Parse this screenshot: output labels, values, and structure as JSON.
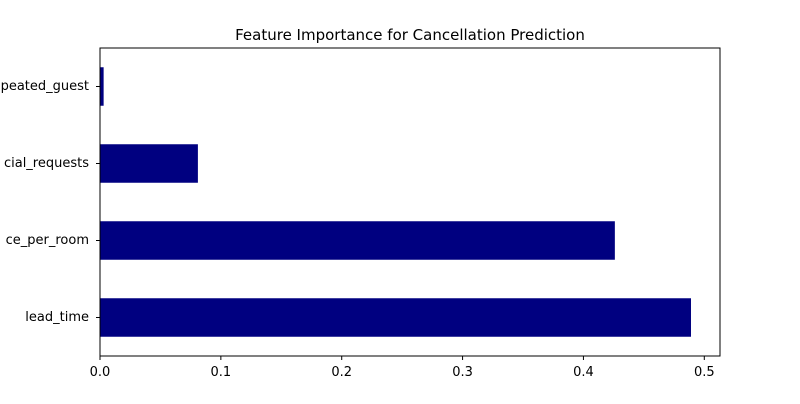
{
  "chart_data": {
    "type": "bar",
    "orientation": "horizontal",
    "title": "Feature Importance for Cancellation Prediction",
    "categories": [
      "lead_time",
      "avg_price_per_room",
      "no_of_special_requests",
      "repeated_guest"
    ],
    "categories_visible": [
      "lead_time",
      "ce_per_room",
      "cial_requests",
      "peated_guest"
    ],
    "values": [
      0.489,
      0.426,
      0.081,
      0.003
    ],
    "x_ticks": [
      "0.0",
      "0.1",
      "0.2",
      "0.3",
      "0.4",
      "0.5"
    ],
    "xlim": [
      0,
      0.513
    ],
    "xlabel": "",
    "ylabel": "",
    "bar_color": "#000080",
    "grid": false,
    "legend": "none"
  }
}
